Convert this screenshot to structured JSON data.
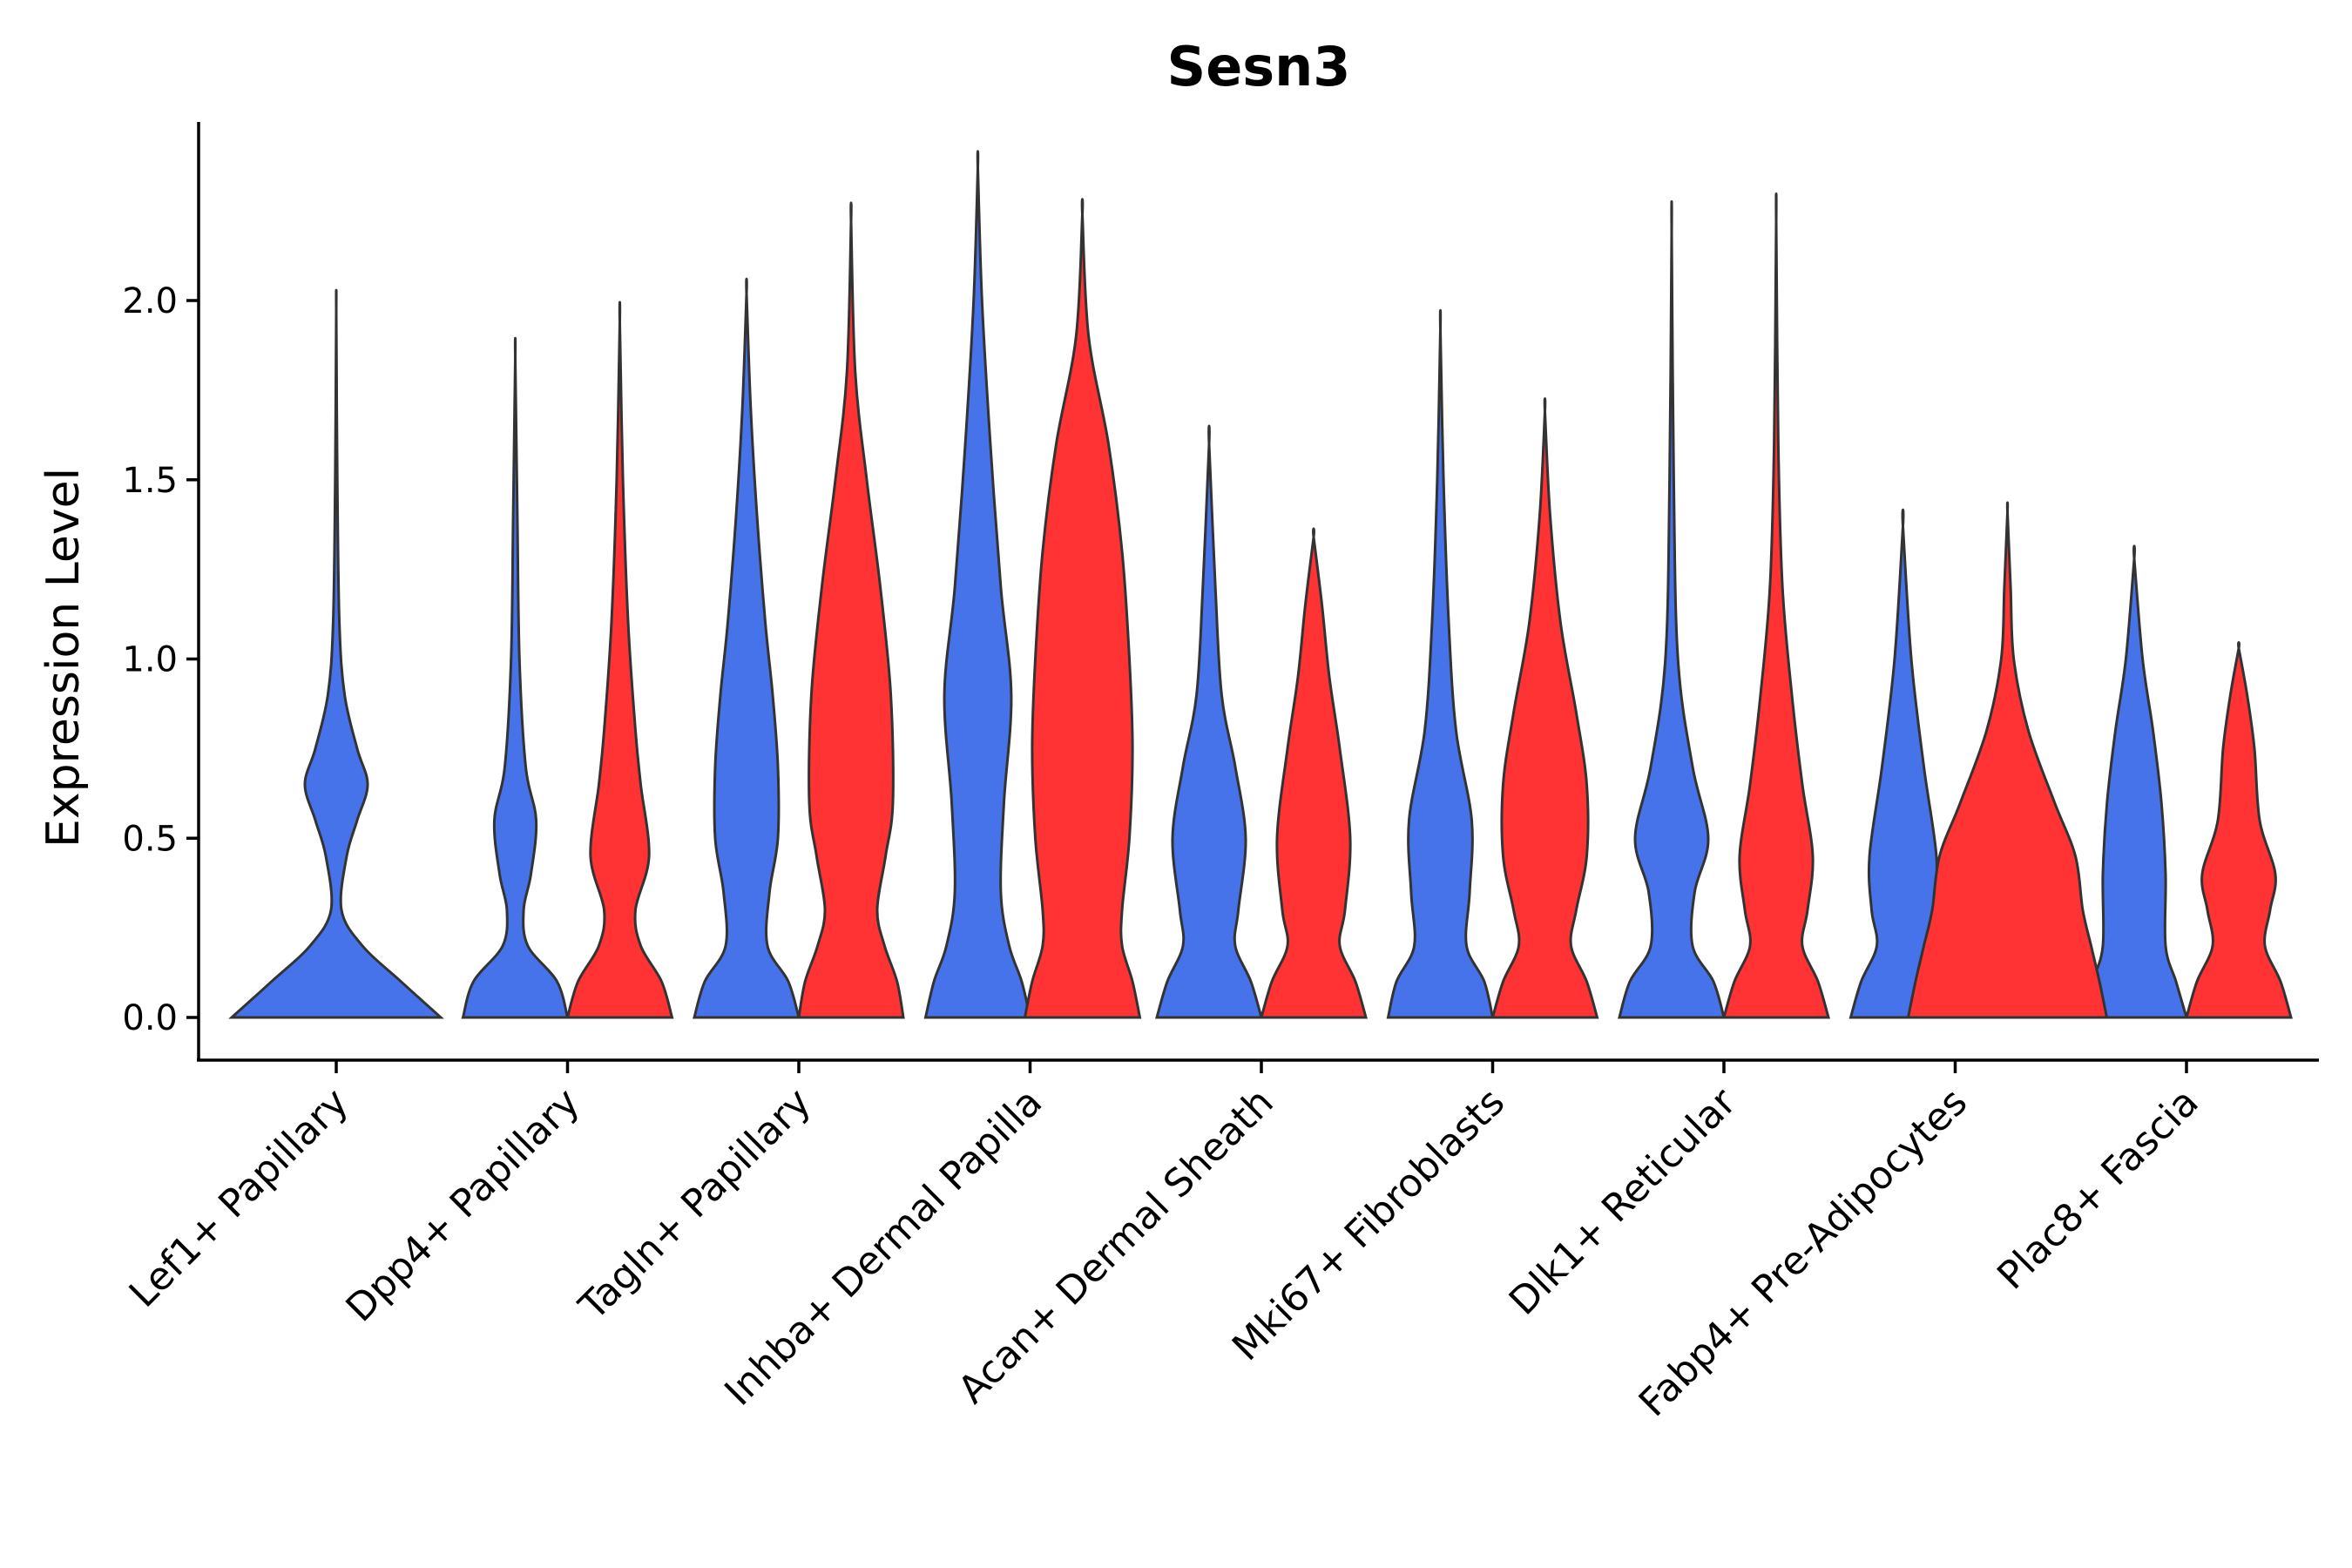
{
  "chart_data": {
    "type": "violin",
    "title": "Sesn3",
    "xlabel": "",
    "ylabel": "Expression Level",
    "ylim": [
      -0.12,
      2.5
    ],
    "yticks": [
      "0.0",
      "0.5",
      "1.0",
      "1.5",
      "2.0"
    ],
    "ytick_values": [
      0,
      0.5,
      1.0,
      1.5,
      2.0
    ],
    "colors": {
      "group1": "#4672ea",
      "group2": "#ff3333"
    },
    "categories": [
      "Lef1+ Papillary",
      "Dpp4+ Papillary",
      "Tagln+ Papillary",
      "Inhba+ Dermal Papilla",
      "Acan+ Dermal Sheath",
      "Mki67+ Fibroblasts",
      "Dlk1+ Reticular",
      "Fabp4+ Pre-Adipocytes",
      "Plac8+ Fascia"
    ],
    "series": [
      {
        "name": "group1",
        "color": "#4672ea",
        "max_values": [
          1.97,
          1.84,
          2.02,
          2.37,
          1.6,
          1.92,
          2.19,
          1.37,
          1.28
        ],
        "density": [
          [
            [
              0,
              1.0
            ],
            [
              0.1,
              0.62
            ],
            [
              0.2,
              0.25
            ],
            [
              0.3,
              0.05
            ],
            [
              0.45,
              0.1
            ],
            [
              0.55,
              0.2
            ],
            [
              0.65,
              0.3
            ],
            [
              0.75,
              0.2
            ],
            [
              0.9,
              0.08
            ],
            [
              1.1,
              0.03
            ],
            [
              1.5,
              0.01
            ],
            [
              1.97,
              0
            ]
          ],
          [
            [
              0,
              0.5
            ],
            [
              0.1,
              0.4
            ],
            [
              0.2,
              0.12
            ],
            [
              0.3,
              0.08
            ],
            [
              0.4,
              0.15
            ],
            [
              0.55,
              0.2
            ],
            [
              0.7,
              0.1
            ],
            [
              1.0,
              0.04
            ],
            [
              1.4,
              0.02
            ],
            [
              1.84,
              0
            ]
          ],
          [
            [
              0,
              0.5
            ],
            [
              0.1,
              0.4
            ],
            [
              0.2,
              0.2
            ],
            [
              0.35,
              0.22
            ],
            [
              0.5,
              0.3
            ],
            [
              0.7,
              0.3
            ],
            [
              0.9,
              0.25
            ],
            [
              1.1,
              0.18
            ],
            [
              1.4,
              0.1
            ],
            [
              1.7,
              0.04
            ],
            [
              2.02,
              0
            ]
          ],
          [
            [
              0,
              0.5
            ],
            [
              0.1,
              0.42
            ],
            [
              0.2,
              0.3
            ],
            [
              0.35,
              0.22
            ],
            [
              0.6,
              0.25
            ],
            [
              0.9,
              0.32
            ],
            [
              1.2,
              0.22
            ],
            [
              1.6,
              0.12
            ],
            [
              2.0,
              0.04
            ],
            [
              2.37,
              0
            ]
          ],
          [
            [
              0,
              0.5
            ],
            [
              0.1,
              0.4
            ],
            [
              0.2,
              0.25
            ],
            [
              0.3,
              0.28
            ],
            [
              0.5,
              0.35
            ],
            [
              0.7,
              0.25
            ],
            [
              0.9,
              0.12
            ],
            [
              1.2,
              0.06
            ],
            [
              1.6,
              0
            ]
          ],
          [
            [
              0,
              0.5
            ],
            [
              0.1,
              0.42
            ],
            [
              0.2,
              0.25
            ],
            [
              0.35,
              0.28
            ],
            [
              0.55,
              0.3
            ],
            [
              0.8,
              0.15
            ],
            [
              1.1,
              0.08
            ],
            [
              1.5,
              0.03
            ],
            [
              1.92,
              0
            ]
          ],
          [
            [
              0,
              0.5
            ],
            [
              0.1,
              0.4
            ],
            [
              0.2,
              0.2
            ],
            [
              0.35,
              0.22
            ],
            [
              0.5,
              0.35
            ],
            [
              0.7,
              0.2
            ],
            [
              1.0,
              0.06
            ],
            [
              1.5,
              0.02
            ],
            [
              2.19,
              0
            ]
          ],
          [
            [
              0,
              0.5
            ],
            [
              0.1,
              0.4
            ],
            [
              0.2,
              0.25
            ],
            [
              0.3,
              0.3
            ],
            [
              0.45,
              0.32
            ],
            [
              0.7,
              0.2
            ],
            [
              1.0,
              0.08
            ],
            [
              1.37,
              0
            ]
          ],
          [
            [
              0,
              0.5
            ],
            [
              0.1,
              0.4
            ],
            [
              0.2,
              0.3
            ],
            [
              0.4,
              0.3
            ],
            [
              0.6,
              0.26
            ],
            [
              0.8,
              0.18
            ],
            [
              1.0,
              0.08
            ],
            [
              1.28,
              0
            ]
          ]
        ]
      },
      {
        "name": "group2",
        "color": "#ff3333",
        "max_values": [
          null,
          1.94,
          2.22,
          2.24,
          1.34,
          1.69,
          2.22,
          1.41,
          1.03
        ],
        "density": [
          null,
          [
            [
              0,
              0.5
            ],
            [
              0.1,
              0.4
            ],
            [
              0.2,
              0.2
            ],
            [
              0.3,
              0.15
            ],
            [
              0.45,
              0.28
            ],
            [
              0.65,
              0.2
            ],
            [
              0.8,
              0.15
            ],
            [
              1.1,
              0.08
            ],
            [
              1.5,
              0.03
            ],
            [
              1.94,
              0
            ]
          ],
          [
            [
              0,
              0.5
            ],
            [
              0.1,
              0.44
            ],
            [
              0.2,
              0.32
            ],
            [
              0.3,
              0.25
            ],
            [
              0.45,
              0.33
            ],
            [
              0.6,
              0.4
            ],
            [
              0.9,
              0.38
            ],
            [
              1.2,
              0.28
            ],
            [
              1.5,
              0.15
            ],
            [
              1.8,
              0.04
            ],
            [
              2.22,
              0
            ]
          ],
          [
            [
              0,
              0.55
            ],
            [
              0.1,
              0.48
            ],
            [
              0.2,
              0.38
            ],
            [
              0.3,
              0.38
            ],
            [
              0.5,
              0.45
            ],
            [
              0.75,
              0.48
            ],
            [
              1.0,
              0.45
            ],
            [
              1.3,
              0.38
            ],
            [
              1.6,
              0.25
            ],
            [
              1.9,
              0.06
            ],
            [
              2.24,
              0
            ]
          ],
          [
            [
              0,
              0.5
            ],
            [
              0.1,
              0.4
            ],
            [
              0.2,
              0.25
            ],
            [
              0.3,
              0.3
            ],
            [
              0.5,
              0.35
            ],
            [
              0.75,
              0.25
            ],
            [
              0.95,
              0.15
            ],
            [
              1.15,
              0.08
            ],
            [
              1.34,
              0
            ]
          ],
          [
            [
              0,
              0.5
            ],
            [
              0.1,
              0.4
            ],
            [
              0.2,
              0.25
            ],
            [
              0.3,
              0.3
            ],
            [
              0.45,
              0.4
            ],
            [
              0.65,
              0.4
            ],
            [
              0.85,
              0.3
            ],
            [
              1.1,
              0.15
            ],
            [
              1.4,
              0.05
            ],
            [
              1.69,
              0
            ]
          ],
          [
            [
              0,
              0.5
            ],
            [
              0.1,
              0.4
            ],
            [
              0.2,
              0.25
            ],
            [
              0.3,
              0.3
            ],
            [
              0.45,
              0.35
            ],
            [
              0.65,
              0.25
            ],
            [
              0.9,
              0.15
            ],
            [
              1.2,
              0.06
            ],
            [
              1.6,
              0.02
            ],
            [
              2.22,
              0
            ]
          ],
          [
            [
              0,
              0.95
            ],
            [
              0.1,
              0.88
            ],
            [
              0.2,
              0.8
            ],
            [
              0.3,
              0.72
            ],
            [
              0.45,
              0.65
            ],
            [
              0.6,
              0.45
            ],
            [
              0.8,
              0.2
            ],
            [
              1.0,
              0.06
            ],
            [
              1.2,
              0.03
            ],
            [
              1.41,
              0
            ]
          ],
          [
            [
              0,
              0.5
            ],
            [
              0.1,
              0.4
            ],
            [
              0.2,
              0.25
            ],
            [
              0.3,
              0.3
            ],
            [
              0.4,
              0.35
            ],
            [
              0.55,
              0.2
            ],
            [
              0.75,
              0.15
            ],
            [
              0.9,
              0.08
            ],
            [
              1.03,
              0
            ]
          ]
        ]
      }
    ]
  }
}
